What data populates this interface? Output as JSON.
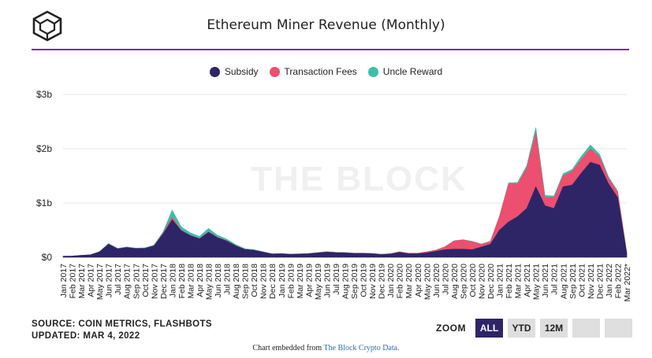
{
  "header": {
    "title": "Ethereum Miner Revenue (Monthly)",
    "accent_color": "#7b2fa0"
  },
  "chart_data": {
    "type": "area",
    "stacked": true,
    "title": "Ethereum Miner Revenue (Monthly)",
    "watermark": "THE BLOCK",
    "legend_position": "top-center",
    "grid": true,
    "ylim": [
      0,
      3000000000
    ],
    "y_ticks": [
      {
        "value": 0,
        "label": "$0"
      },
      {
        "value": 1000000000,
        "label": "$1b"
      },
      {
        "value": 2000000000,
        "label": "$2b"
      },
      {
        "value": 3000000000,
        "label": "$3b"
      }
    ],
    "categories": [
      "Jan 2017",
      "Feb 2017",
      "Mar 2017",
      "Apr 2017",
      "May 2017",
      "Jun 2017",
      "Jul 2017",
      "Aug 2017",
      "Sep 2017",
      "Oct 2017",
      "Nov 2017",
      "Dec 2017",
      "Jan 2018",
      "Feb 2018",
      "Mar 2018",
      "Apr 2018",
      "May 2018",
      "Jun 2018",
      "Jul 2018",
      "Aug 2018",
      "Sep 2018",
      "Oct 2018",
      "Nov 2018",
      "Dec 2018",
      "Jan 2019",
      "Feb 2019",
      "Mar 2019",
      "Apr 2019",
      "May 2019",
      "Jun 2019",
      "Jul 2019",
      "Aug 2019",
      "Sep 2019",
      "Oct 2019",
      "Nov 2019",
      "Dec 2019",
      "Jan 2020",
      "Feb 2020",
      "Mar 2020",
      "Apr 2020",
      "May 2020",
      "Jun 2020",
      "Jul 2020",
      "Aug 2020",
      "Sep 2020",
      "Oct 2020",
      "Nov 2020",
      "Dec 2020",
      "Jan 2021",
      "Feb 2021",
      "Mar 2021",
      "Apr 2021",
      "May 2021",
      "Jun 2021",
      "Jul 2021",
      "Aug 2021",
      "Sep 2021",
      "Oct 2021",
      "Nov 2021",
      "Dec 2021",
      "Jan 2022",
      "Feb 2022",
      "Mar 2022*"
    ],
    "series": [
      {
        "name": "Subsidy",
        "color": "#2e2567",
        "values": [
          20,
          22,
          35,
          45,
          100,
          240,
          155,
          180,
          160,
          165,
          210,
          430,
          690,
          490,
          400,
          340,
          460,
          360,
          300,
          210,
          145,
          130,
          95,
          60,
          65,
          55,
          60,
          65,
          80,
          95,
          85,
          80,
          70,
          70,
          65,
          50,
          60,
          90,
          65,
          65,
          80,
          110,
          140,
          150,
          150,
          140,
          190,
          240,
          500,
          650,
          750,
          900,
          1300,
          950,
          900,
          1300,
          1330,
          1550,
          1750,
          1700,
          1350,
          1100,
          70
        ]
      },
      {
        "name": "Transaction Fees",
        "color": "#ec4f6f",
        "values": [
          0,
          0,
          0,
          0,
          0,
          3,
          2,
          2,
          2,
          2,
          3,
          15,
          50,
          10,
          5,
          5,
          10,
          5,
          5,
          3,
          2,
          2,
          2,
          1,
          1,
          1,
          1,
          2,
          3,
          5,
          5,
          5,
          5,
          5,
          5,
          5,
          5,
          10,
          10,
          10,
          20,
          20,
          50,
          150,
          170,
          150,
          50,
          50,
          250,
          700,
          600,
          750,
          1000,
          150,
          200,
          200,
          250,
          250,
          250,
          150,
          100,
          100,
          10
        ]
      },
      {
        "name": "Uncle Reward",
        "color": "#3dbea9",
        "values": [
          1,
          1,
          2,
          2,
          5,
          12,
          8,
          9,
          8,
          8,
          11,
          25,
          130,
          60,
          45,
          40,
          60,
          40,
          30,
          20,
          12,
          8,
          5,
          3,
          4,
          3,
          3,
          4,
          5,
          5,
          4,
          4,
          4,
          4,
          3,
          3,
          3,
          4,
          3,
          3,
          3,
          4,
          5,
          5,
          5,
          4,
          5,
          7,
          10,
          20,
          30,
          40,
          90,
          40,
          30,
          40,
          40,
          60,
          70,
          50,
          30,
          20,
          5
        ]
      }
    ],
    "value_unit": "millions USD"
  },
  "footer": {
    "source": "SOURCE: COIN METRICS, FLASHBOTS",
    "updated": "UPDATED: MAR 4, 2022",
    "embedded_prefix": "Chart embedded from ",
    "embedded_link": "The Block Crypto Data."
  },
  "zoom": {
    "label": "ZOOM",
    "buttons": [
      "ALL",
      "YTD",
      "12M",
      "",
      ""
    ],
    "active": "ALL"
  }
}
